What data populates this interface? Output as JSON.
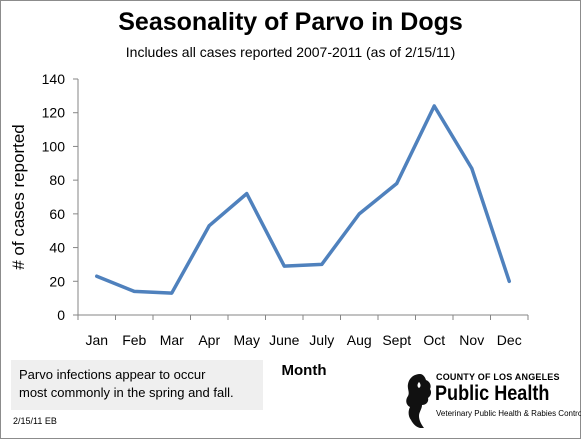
{
  "chart_data": {
    "type": "line",
    "title": "Seasonality of Parvo in Dogs",
    "subtitle": "Includes all cases reported 2007-2011  (as of 2/15/11)",
    "xlabel": "Month",
    "ylabel": "# of cases reported",
    "categories": [
      "Jan",
      "Feb",
      "Mar",
      "Apr",
      "May",
      "June",
      "July",
      "Aug",
      "Sept",
      "Oct",
      "Nov",
      "Dec"
    ],
    "series": [
      {
        "values": [
          23,
          14,
          13,
          53,
          72,
          29,
          30,
          60,
          78,
          124,
          87,
          20
        ]
      }
    ],
    "ylim": [
      0,
      140
    ],
    "yticks": [
      0,
      20,
      40,
      60,
      80,
      100,
      120,
      140
    ],
    "grid": false,
    "line_color": "#4f81bd"
  },
  "note": {
    "line1": "Parvo infections appear to occur",
    "line2": "most commonly in the spring and fall."
  },
  "footer": "2/15/11 EB",
  "logo": {
    "line1": "COUNTY OF LOS ANGELES",
    "line2": "Public Health",
    "line3": "Veterinary Public Health & Rabies Control"
  }
}
